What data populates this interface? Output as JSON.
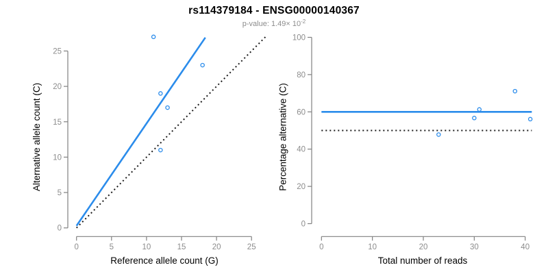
{
  "header": {
    "title": "rs114379184 - ENSG00000140367",
    "p_value_prefix": "p-value: 1.49× 10",
    "p_value_exponent": "-2"
  },
  "colors": {
    "accent_blue": "#2b8ceb",
    "axis_gray": "#808080",
    "tick_label_gray": "#8c8c8c",
    "dotted_black": "#1a1a1a",
    "title_black": "#000000",
    "subtitle_gray": "#8c8c8c"
  },
  "chart_data": [
    {
      "type": "scatter",
      "title": "",
      "xlabel": "Reference allele count (G)",
      "ylabel": "Alternative allele count (C)",
      "xlim": [
        0,
        27.5
      ],
      "ylim": [
        0,
        27.5
      ],
      "xticks": [
        0,
        5,
        10,
        15,
        20,
        25
      ],
      "yticks": [
        0,
        5,
        10,
        15,
        20,
        25
      ],
      "grid": false,
      "legend": "none",
      "points": [
        [
          11,
          27
        ],
        [
          12,
          19
        ],
        [
          13,
          17
        ],
        [
          12,
          11
        ],
        [
          18,
          23
        ]
      ],
      "lines": [
        {
          "name": "fit-line",
          "style": "solid",
          "color_key": "accent_blue",
          "from": [
            0,
            0.3
          ],
          "to": [
            18.4,
            26.9
          ]
        },
        {
          "name": "identity-line",
          "style": "dotted",
          "color_key": "dotted_black",
          "from": [
            0,
            0
          ],
          "to": [
            27,
            27
          ]
        }
      ]
    },
    {
      "type": "scatter",
      "title": "",
      "xlabel": "Total number of reads",
      "ylabel": "Percentage alternative (C)",
      "xlim": [
        0,
        41.3
      ],
      "ylim": [
        0,
        100
      ],
      "xticks": [
        0,
        10,
        20,
        30,
        40
      ],
      "yticks": [
        0,
        20,
        40,
        60,
        80,
        100
      ],
      "grid": false,
      "legend": "none",
      "points": [
        [
          38,
          71.1
        ],
        [
          31,
          61.3
        ],
        [
          30,
          56.7
        ],
        [
          41,
          56.1
        ],
        [
          23,
          47.8
        ]
      ],
      "lines": [
        {
          "name": "mean-percentage-line",
          "style": "solid",
          "color_key": "accent_blue",
          "y": 60
        },
        {
          "name": "fifty-percent-line",
          "style": "dotted",
          "color_key": "dotted_black",
          "y": 50
        }
      ]
    }
  ]
}
